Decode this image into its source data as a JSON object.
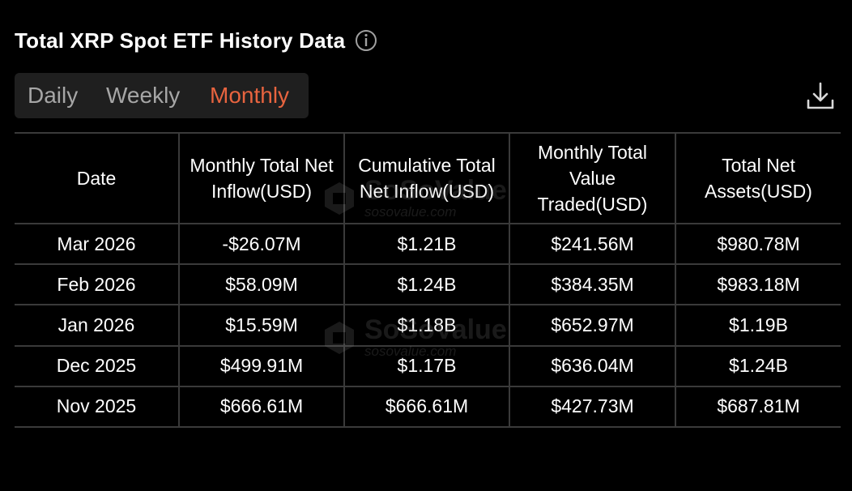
{
  "header": {
    "title": "Total XRP Spot ETF History Data",
    "info_icon": "info-icon"
  },
  "tabs": [
    {
      "label": "Daily",
      "active": false
    },
    {
      "label": "Weekly",
      "active": false
    },
    {
      "label": "Monthly",
      "active": true
    }
  ],
  "download_icon": "download-icon",
  "colors": {
    "accent": "#e8643f",
    "positive": "#5ec76a",
    "negative": "#e8604a",
    "background": "#000000"
  },
  "table": {
    "columns": [
      "Date",
      "Monthly Total Net Inflow(USD)",
      "Cumulative Total Net Inflow(USD)",
      "Monthly Total Value Traded(USD)",
      "Total Net Assets(USD)"
    ],
    "rows": [
      {
        "date": "Mar 2026",
        "net_inflow": "-$26.07M",
        "inflow_sign": "neg",
        "cumulative": "$1.21B",
        "traded": "$241.56M",
        "assets": "$980.78M"
      },
      {
        "date": "Feb 2026",
        "net_inflow": "$58.09M",
        "inflow_sign": "pos",
        "cumulative": "$1.24B",
        "traded": "$384.35M",
        "assets": "$983.18M"
      },
      {
        "date": "Jan 2026",
        "net_inflow": "$15.59M",
        "inflow_sign": "pos",
        "cumulative": "$1.18B",
        "traded": "$652.97M",
        "assets": "$1.19B"
      },
      {
        "date": "Dec 2025",
        "net_inflow": "$499.91M",
        "inflow_sign": "pos",
        "cumulative": "$1.17B",
        "traded": "$636.04M",
        "assets": "$1.24B"
      },
      {
        "date": "Nov 2025",
        "net_inflow": "$666.61M",
        "inflow_sign": "pos",
        "cumulative": "$666.61M",
        "traded": "$427.73M",
        "assets": "$687.81M"
      }
    ]
  },
  "watermark": {
    "brand": "SoSoValue",
    "url": "sosovalue.com"
  }
}
